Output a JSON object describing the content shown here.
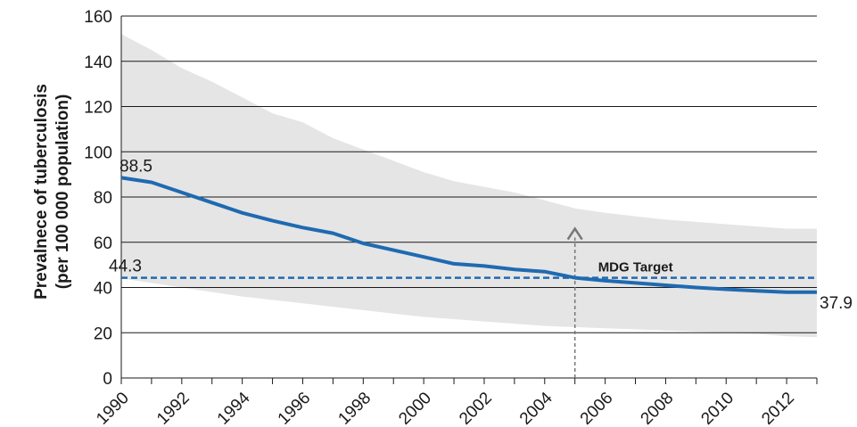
{
  "chart_data": {
    "type": "line",
    "ylabel": [
      "Prevalnece of tuberculosis",
      "(per 100 000 population)"
    ],
    "ylim": [
      0,
      160
    ],
    "yticks": [
      0,
      20,
      40,
      60,
      80,
      100,
      120,
      140,
      160
    ],
    "xlim": [
      1990,
      2013
    ],
    "xticks": [
      1990,
      1992,
      1994,
      1996,
      1998,
      2000,
      2002,
      2004,
      2006,
      2008,
      2010,
      2012
    ],
    "grid": "horizontal",
    "series": [
      {
        "values": [
          {
            "x": 1990,
            "y": 88.5
          },
          {
            "x": 1991,
            "y": 86.5
          },
          {
            "x": 1992,
            "y": 82
          },
          {
            "x": 1993,
            "y": 77.5
          },
          {
            "x": 1994,
            "y": 73
          },
          {
            "x": 1995,
            "y": 69.5
          },
          {
            "x": 1996,
            "y": 66.5
          },
          {
            "x": 1997,
            "y": 64
          },
          {
            "x": 1998,
            "y": 59.5
          },
          {
            "x": 1999,
            "y": 56.5
          },
          {
            "x": 2000,
            "y": 53.5
          },
          {
            "x": 2001,
            "y": 50.5
          },
          {
            "x": 2002,
            "y": 49.5
          },
          {
            "x": 2003,
            "y": 48
          },
          {
            "x": 2004,
            "y": 47
          },
          {
            "x": 2005,
            "y": 44.3
          },
          {
            "x": 2006,
            "y": 43
          },
          {
            "x": 2007,
            "y": 42
          },
          {
            "x": 2008,
            "y": 41
          },
          {
            "x": 2009,
            "y": 40
          },
          {
            "x": 2010,
            "y": 39.2
          },
          {
            "x": 2011,
            "y": 38.5
          },
          {
            "x": 2012,
            "y": 37.9
          },
          {
            "x": 2013,
            "y": 37.9
          }
        ],
        "color": "#1f6ab1"
      }
    ],
    "uncertainty_band": {
      "color": "#e5e5e5",
      "upper": [
        {
          "x": 1990,
          "y": 152
        },
        {
          "x": 1991,
          "y": 145
        },
        {
          "x": 1992,
          "y": 137
        },
        {
          "x": 1993,
          "y": 131
        },
        {
          "x": 1994,
          "y": 124
        },
        {
          "x": 1995,
          "y": 117
        },
        {
          "x": 1996,
          "y": 113
        },
        {
          "x": 1997,
          "y": 106
        },
        {
          "x": 1998,
          "y": 101
        },
        {
          "x": 1999,
          "y": 96
        },
        {
          "x": 2000,
          "y": 91
        },
        {
          "x": 2001,
          "y": 87
        },
        {
          "x": 2002,
          "y": 84.5
        },
        {
          "x": 2003,
          "y": 82
        },
        {
          "x": 2004,
          "y": 78.5
        },
        {
          "x": 2005,
          "y": 75
        },
        {
          "x": 2006,
          "y": 73
        },
        {
          "x": 2007,
          "y": 71.5
        },
        {
          "x": 2008,
          "y": 70
        },
        {
          "x": 2009,
          "y": 69
        },
        {
          "x": 2010,
          "y": 68
        },
        {
          "x": 2011,
          "y": 67
        },
        {
          "x": 2012,
          "y": 66
        },
        {
          "x": 2013,
          "y": 66
        }
      ],
      "lower": [
        {
          "x": 1990,
          "y": 44
        },
        {
          "x": 1991,
          "y": 42
        },
        {
          "x": 1992,
          "y": 40
        },
        {
          "x": 1993,
          "y": 38
        },
        {
          "x": 1994,
          "y": 36
        },
        {
          "x": 1995,
          "y": 34.5
        },
        {
          "x": 1996,
          "y": 33
        },
        {
          "x": 1997,
          "y": 31.5
        },
        {
          "x": 1998,
          "y": 30
        },
        {
          "x": 1999,
          "y": 28.5
        },
        {
          "x": 2000,
          "y": 27
        },
        {
          "x": 2001,
          "y": 26
        },
        {
          "x": 2002,
          "y": 25
        },
        {
          "x": 2003,
          "y": 24
        },
        {
          "x": 2004,
          "y": 23
        },
        {
          "x": 2005,
          "y": 22.5
        },
        {
          "x": 2006,
          "y": 22
        },
        {
          "x": 2007,
          "y": 21.5
        },
        {
          "x": 2008,
          "y": 21
        },
        {
          "x": 2009,
          "y": 20.5
        },
        {
          "x": 2010,
          "y": 20
        },
        {
          "x": 2011,
          "y": 19.5
        },
        {
          "x": 2012,
          "y": 18.5
        },
        {
          "x": 2013,
          "y": 18
        }
      ]
    },
    "target_line": {
      "label": "MDG Target",
      "value": 44.3,
      "value_label": "44.3",
      "color": "#1f6ab1",
      "style": "dashed"
    },
    "target_marker": {
      "x": 2005,
      "y_from": 0,
      "y_to": 66,
      "color": "#777777",
      "style": "dashed-arrow"
    },
    "annotations": [
      {
        "text": "88.5",
        "x": 1990,
        "y": 88.5
      },
      {
        "text": "37.9",
        "x": 2013,
        "y": 37.9
      }
    ]
  }
}
